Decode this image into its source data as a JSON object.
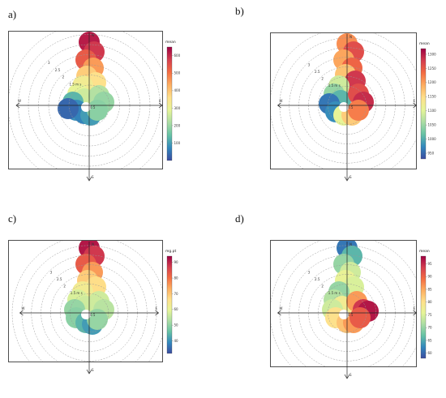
{
  "chart_data": [
    {
      "panel": "a)",
      "type": "polar-plot",
      "legend_title": "mean",
      "colorbar_ticks": [
        100,
        200,
        300,
        400,
        500,
        600
      ],
      "colorbar_range": [
        0,
        650
      ],
      "colorscale": "spectral (blue-low, red-high)",
      "radial_labels": [
        "1.5 m s",
        "2",
        "2.5",
        "3"
      ],
      "radial_values": [
        1.5,
        2,
        2.5,
        3
      ],
      "direction_labels": {
        "north": "N",
        "east": "E",
        "south": "S",
        "west": "W"
      },
      "calm_label": "0.5",
      "grid": "dashed circles",
      "legend_placement": "right"
    },
    {
      "panel": "b)",
      "type": "polar-plot",
      "legend_title": "mean",
      "colorbar_ticks": [
        950,
        1000,
        1050,
        1100,
        1150,
        1200,
        1250,
        1300
      ],
      "colorbar_range": [
        930,
        1320
      ],
      "colorscale": "spectral (blue-low, red-high)",
      "radial_labels": [
        "1.5 m s",
        "2",
        "2.5",
        "3"
      ],
      "radial_values": [
        1.5,
        2,
        2.5,
        3
      ],
      "direction_labels": {
        "north": "N",
        "east": "E",
        "south": "S",
        "west": "W"
      },
      "calm_label": "0.5",
      "grid": "dashed circles",
      "legend_placement": "right"
    },
    {
      "panel": "c)",
      "type": "polar-plot",
      "legend_title": "mg.pt",
      "colorbar_ticks": [
        40,
        50,
        60,
        70,
        80,
        90
      ],
      "colorbar_range": [
        32,
        94
      ],
      "colorscale": "spectral (blue-low, red-high)",
      "radial_labels": [
        "1.5 m s",
        "2",
        "2.5",
        "3"
      ],
      "radial_values": [
        1.5,
        2,
        2.5,
        3
      ],
      "direction_labels": {
        "north": "N",
        "east": "E",
        "south": "S",
        "west": "W"
      },
      "calm_label": "0.5",
      "grid": "dashed circles",
      "legend_placement": "right"
    },
    {
      "panel": "d)",
      "type": "polar-plot",
      "legend_title": "mean",
      "colorbar_ticks": [
        60,
        65,
        70,
        75,
        80,
        85,
        90,
        95
      ],
      "colorbar_range": [
        58,
        98
      ],
      "colorscale": "spectral (blue-low, red-high)",
      "radial_labels": [
        "1.5 m s",
        "2",
        "2.5",
        "3"
      ],
      "radial_values": [
        1.5,
        2,
        2.5,
        3
      ],
      "direction_labels": {
        "north": "N",
        "east": "E",
        "south": "S",
        "west": "W"
      },
      "calm_label": "0.5",
      "grid": "dashed circles",
      "legend_placement": "right"
    }
  ],
  "colors": {
    "scale": [
      "#3b4ca0",
      "#3288bd",
      "#66c2a5",
      "#abdda4",
      "#e6f598",
      "#fee08b",
      "#fdae61",
      "#f46d43",
      "#d53e4f",
      "#9e0142"
    ]
  }
}
